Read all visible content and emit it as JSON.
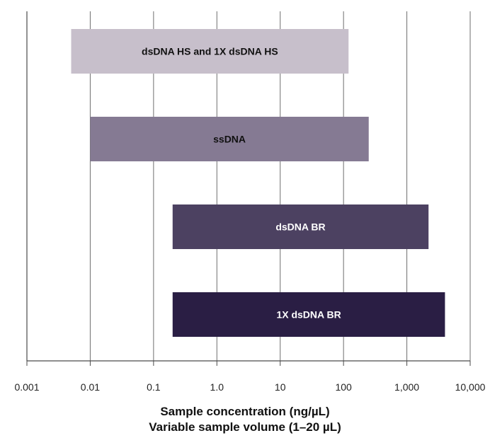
{
  "chart_data": {
    "type": "bar",
    "orientation": "horizontal",
    "scale": "log",
    "xlim": [
      0.001,
      10000
    ],
    "ticks": [
      0.001,
      0.01,
      0.1,
      1,
      10,
      100,
      1000,
      10000
    ],
    "tick_labels": [
      "0.001",
      "0.01",
      "0.1",
      "1.0",
      "10",
      "100",
      "1,000",
      "10,000"
    ],
    "grid": true,
    "xlabel_line1": "Sample concentration (ng/µL)",
    "xlabel_line2": "Variable sample volume (1–20 µL)",
    "bars": [
      {
        "label": "dsDNA HS and 1X dsDNA HS",
        "start": 0.005,
        "end": 120,
        "color": "#c7bfcb",
        "text_color": "#111111"
      },
      {
        "label": "ssDNA",
        "start": 0.01,
        "end": 250,
        "color": "#857a93",
        "text_color": "#111111"
      },
      {
        "label": "dsDNA BR",
        "start": 0.2,
        "end": 2200,
        "color": "#4c4161",
        "text_color": "#ffffff"
      },
      {
        "label": "1X dsDNA BR",
        "start": 0.2,
        "end": 4000,
        "color": "#2a1e44",
        "text_color": "#ffffff"
      }
    ]
  }
}
